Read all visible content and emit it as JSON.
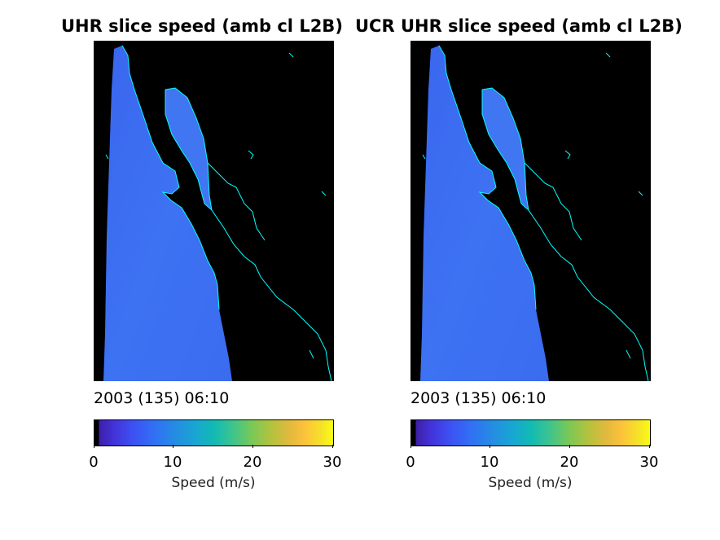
{
  "panels": [
    {
      "title": "UHR slice speed (amb cl L2B)",
      "timestamp": "2003 (135) 06:10",
      "colorbar": {
        "ticks": [
          "0",
          "10",
          "20",
          "30"
        ],
        "label": "Speed (m/s)",
        "range": [
          0,
          30
        ]
      }
    },
    {
      "title": "UCR UHR slice speed (amb cl L2B)",
      "timestamp": "2003 (135) 06:10",
      "colorbar": {
        "ticks": [
          "0",
          "10",
          "20",
          "30"
        ],
        "label": "Speed (m/s)",
        "range": [
          0,
          30
        ]
      }
    }
  ],
  "colors": {
    "land_mask": "#000000",
    "coastline": "#00ffff",
    "ocean_speed": "#3d6cf0"
  }
}
